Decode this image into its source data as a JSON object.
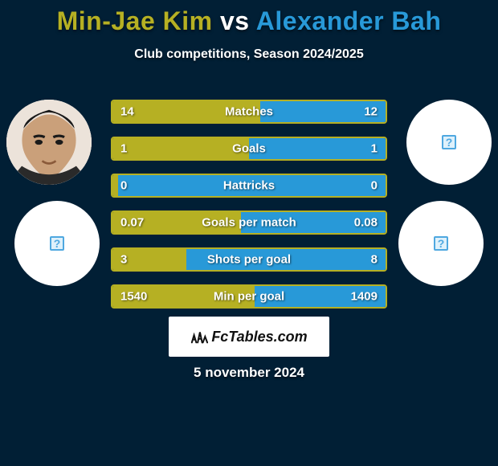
{
  "title": {
    "player1": "Min-Jae Kim",
    "vs": "vs",
    "player2": "Alexander Bah",
    "player1_color": "#b6b023",
    "vs_color": "#ffffff",
    "player2_color": "#2899d8",
    "fontsize": 32
  },
  "subtitle": "Club competitions, Season 2024/2025",
  "colors": {
    "background": "#011f35",
    "left_fill": "#b6b023",
    "right_fill": "#2899d8",
    "border": "#b6b023",
    "text": "#ffffff"
  },
  "avatars": {
    "top_left": {
      "type": "photo",
      "name": "min-jae-kim-portrait"
    },
    "top_right": {
      "type": "placeholder",
      "name": "alexander-bah-portrait"
    },
    "bot_left": {
      "type": "placeholder",
      "name": "club-badge-left"
    },
    "bot_right": {
      "type": "placeholder",
      "name": "club-badge-right"
    }
  },
  "rows": [
    {
      "metric": "Matches",
      "left": "14",
      "right": "12",
      "left_pct": 54
    },
    {
      "metric": "Goals",
      "left": "1",
      "right": "1",
      "left_pct": 50
    },
    {
      "metric": "Hattricks",
      "left": "0",
      "right": "0",
      "left_pct": 2
    },
    {
      "metric": "Goals per match",
      "left": "0.07",
      "right": "0.08",
      "left_pct": 47
    },
    {
      "metric": "Shots per goal",
      "left": "3",
      "right": "8",
      "left_pct": 27
    },
    {
      "metric": "Min per goal",
      "left": "1540",
      "right": "1409",
      "left_pct": 52
    }
  ],
  "row_style": {
    "height": 30,
    "gap": 16,
    "border_radius": 4,
    "font_size": 15
  },
  "brand": "FcTables.com",
  "date": "5 november 2024"
}
